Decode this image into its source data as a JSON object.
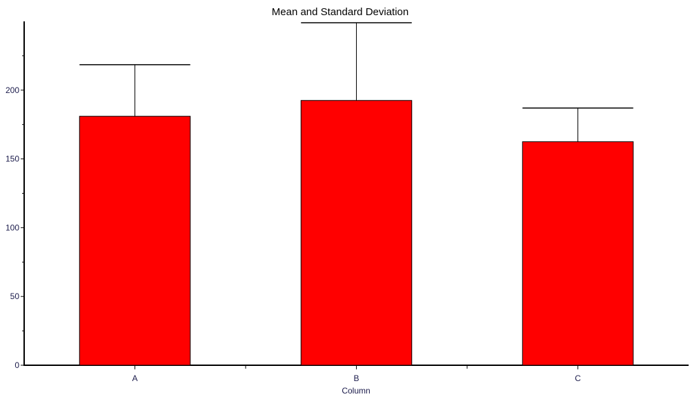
{
  "chart_data": {
    "type": "bar",
    "title": "Mean and Standard Deviation",
    "xlabel": "Column",
    "ylabel": "",
    "categories": [
      "A",
      "B",
      "C"
    ],
    "values": [
      181,
      192.5,
      162.5
    ],
    "std_dev": [
      37.5,
      56.5,
      24.5
    ],
    "ylim": [
      0,
      250
    ],
    "yticks": [
      0,
      50,
      100,
      150,
      200
    ],
    "grid": false,
    "bar_color": "#ff0000"
  }
}
